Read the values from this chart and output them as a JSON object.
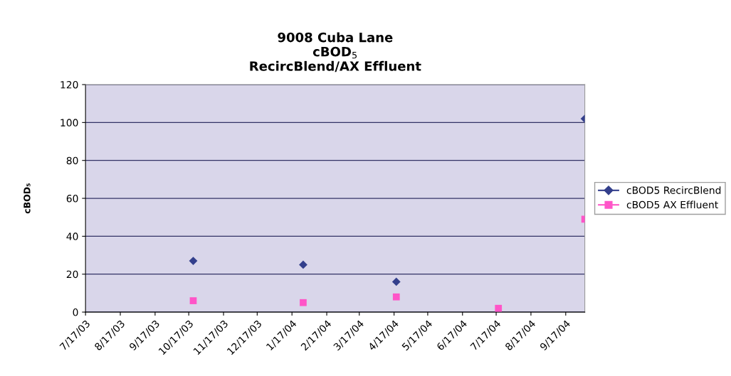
{
  "chart_data": {
    "type": "scatter",
    "title": "9008 Cuba Lane\ncBOD$_{5}$\nRecircBlend/AX Effluent",
    "ylabel": "cBOD₅",
    "series": [
      {
        "name": "cBOD5 RecircBlend",
        "color": "#333f8c",
        "marker": "diamond",
        "x": [
          "2003-10-21",
          "2004-01-27",
          "2004-04-19",
          "2004-10-04"
        ],
        "values": [
          27,
          25,
          16,
          102
        ]
      },
      {
        "name": "cBOD5 AX Effluent",
        "color": "#ff55c8",
        "marker": "square",
        "x": [
          "2003-10-21",
          "2004-01-27",
          "2004-04-19",
          "2004-07-19",
          "2004-10-04"
        ],
        "values": [
          6,
          5,
          8,
          2,
          49
        ]
      }
    ],
    "xlim": [
      "2003-07-17",
      "2004-10-04"
    ],
    "xticks": [
      {
        "value": "2003-07-17",
        "label": "7/17/03"
      },
      {
        "value": "2003-08-17",
        "label": "8/17/03"
      },
      {
        "value": "2003-09-17",
        "label": "9/17/03"
      },
      {
        "value": "2003-10-17",
        "label": "10/17/03"
      },
      {
        "value": "2003-11-17",
        "label": "11/17/03"
      },
      {
        "value": "2003-12-17",
        "label": "12/17/03"
      },
      {
        "value": "2004-01-17",
        "label": "1/17/04"
      },
      {
        "value": "2004-02-17",
        "label": "2/17/04"
      },
      {
        "value": "2004-03-17",
        "label": "3/17/04"
      },
      {
        "value": "2004-04-17",
        "label": "4/17/04"
      },
      {
        "value": "2004-05-17",
        "label": "5/17/04"
      },
      {
        "value": "2004-06-17",
        "label": "6/17/04"
      },
      {
        "value": "2004-07-17",
        "label": "7/17/04"
      },
      {
        "value": "2004-08-17",
        "label": "8/17/04"
      },
      {
        "value": "2004-09-17",
        "label": "9/17/04"
      }
    ],
    "ylim": [
      0,
      120
    ],
    "yticks": [
      0,
      20,
      40,
      60,
      80,
      100,
      120
    ],
    "grid": "y",
    "legend": "right"
  }
}
